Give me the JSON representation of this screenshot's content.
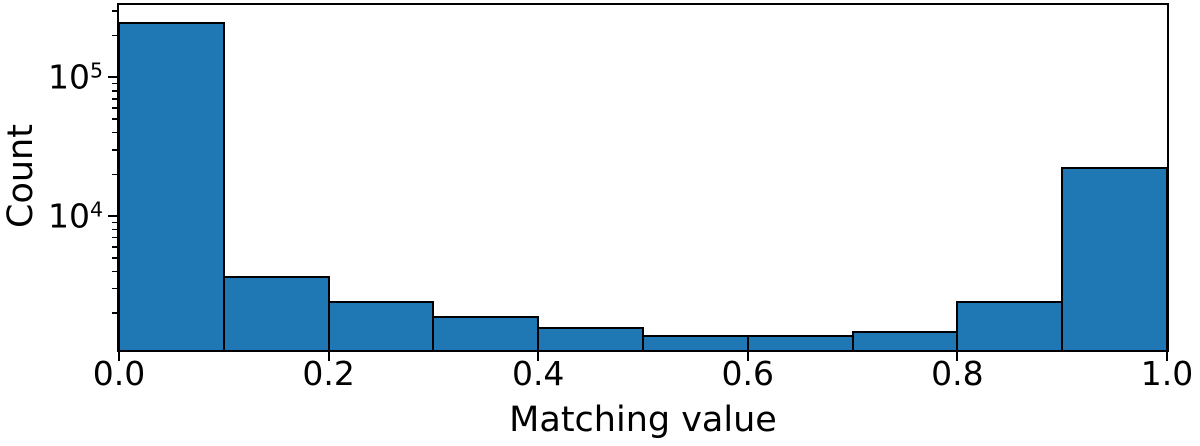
{
  "chart_data": {
    "type": "bar",
    "subtype": "histogram",
    "title": "",
    "xlabel": "Matching value",
    "ylabel": "Count",
    "y_scale": "log",
    "grid": false,
    "legend_position": "none",
    "xlim": [
      0.0,
      1.0
    ],
    "ylim": [
      1086,
      332000
    ],
    "bin_edges": [
      0.0,
      0.1,
      0.2,
      0.3,
      0.4,
      0.5,
      0.6,
      0.7,
      0.8,
      0.9,
      1.0
    ],
    "counts": [
      250000,
      3700,
      2450,
      1900,
      1600,
      1400,
      1400,
      1500,
      2450,
      22500
    ],
    "x_ticks": [
      {
        "value": 0.0,
        "label": "0.0"
      },
      {
        "value": 0.2,
        "label": "0.2"
      },
      {
        "value": 0.4,
        "label": "0.4"
      },
      {
        "value": 0.6,
        "label": "0.6"
      },
      {
        "value": 0.8,
        "label": "0.8"
      },
      {
        "value": 1.0,
        "label": "1.0"
      }
    ],
    "y_ticks": [
      {
        "value": 10000,
        "base": "10",
        "exp": "4"
      },
      {
        "value": 100000,
        "base": "10",
        "exp": "5"
      }
    ],
    "y_minor_ticks": [
      2000,
      3000,
      4000,
      5000,
      6000,
      7000,
      8000,
      9000,
      20000,
      30000,
      40000,
      50000,
      60000,
      70000,
      80000,
      90000,
      200000,
      300000
    ],
    "colors": {
      "bar_fill": "#1f77b4",
      "bar_edge": "#000000",
      "axis": "#000000",
      "text": "#000000",
      "background": "#ffffff"
    }
  }
}
